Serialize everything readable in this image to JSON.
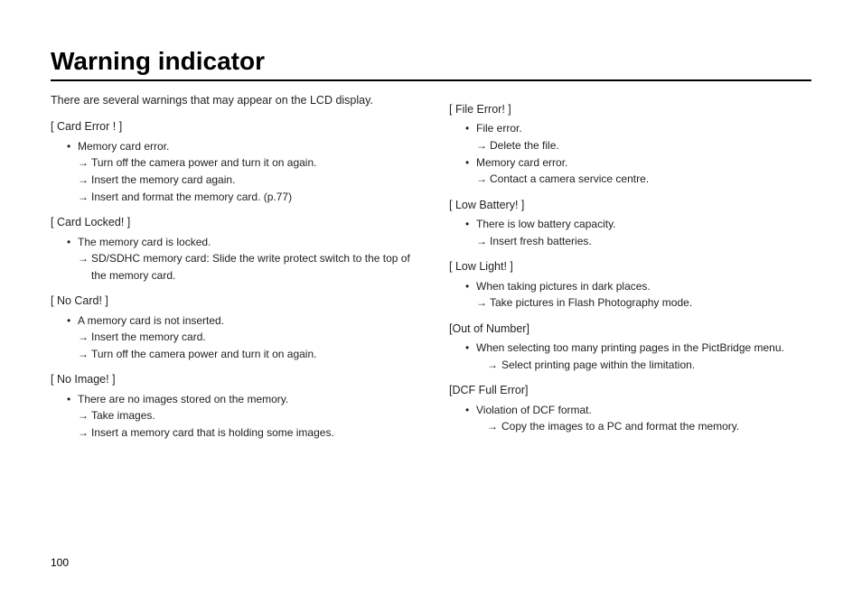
{
  "title": "Warning indicator",
  "intro": "There are several warnings that may appear on the LCD display.",
  "left": [
    {
      "heading": "[ Card Error ! ]",
      "bullets": [
        {
          "text": "Memory card error.",
          "arrows": [
            "Turn off the camera power and turn it on again.",
            "Insert the memory card again.",
            "Insert and format the memory card. (p.77)"
          ]
        }
      ]
    },
    {
      "heading": "[ Card Locked! ]",
      "bullets": [
        {
          "text": "The memory card is locked.",
          "arrows": [
            "SD/SDHC memory card: Slide the write protect switch to the top of the memory card."
          ]
        }
      ]
    },
    {
      "heading": "[ No Card! ]",
      "bullets": [
        {
          "text": "A memory card is not inserted.",
          "arrows": [
            "Insert the memory card.",
            "Turn off the camera power and turn it on again."
          ]
        }
      ]
    },
    {
      "heading": "[ No Image! ]",
      "bullets": [
        {
          "text": "There are no images stored on the memory.",
          "arrows": [
            "Take images.",
            "Insert a memory card that is holding some images."
          ]
        }
      ]
    }
  ],
  "right": [
    {
      "heading": "[ File Error! ]",
      "bullets": [
        {
          "text": "File error.",
          "arrows": [
            "Delete the file."
          ]
        },
        {
          "text": "Memory card error.",
          "arrows": [
            "Contact a camera service centre."
          ]
        }
      ]
    },
    {
      "heading": "[ Low Battery! ]",
      "bullets": [
        {
          "text": "There is low battery capacity.",
          "arrows": [
            "Insert fresh batteries."
          ]
        }
      ]
    },
    {
      "heading": "[ Low Light! ]",
      "bullets": [
        {
          "text": "When taking pictures in dark places.",
          "arrows": [
            "Take pictures in Flash Photography mode."
          ]
        }
      ]
    },
    {
      "heading": "[Out of Number]",
      "tight": true,
      "bullets": [
        {
          "text": "When selecting too many printing pages in the PictBridge menu.",
          "arrows": [
            "Select printing page within the limitation."
          ]
        }
      ]
    },
    {
      "heading": "[DCF Full Error]",
      "tight": true,
      "bullets": [
        {
          "text": "Violation of DCF format.",
          "arrows": [
            "Copy the images to a PC and format the memory."
          ]
        }
      ]
    }
  ],
  "pageNumber": "100"
}
